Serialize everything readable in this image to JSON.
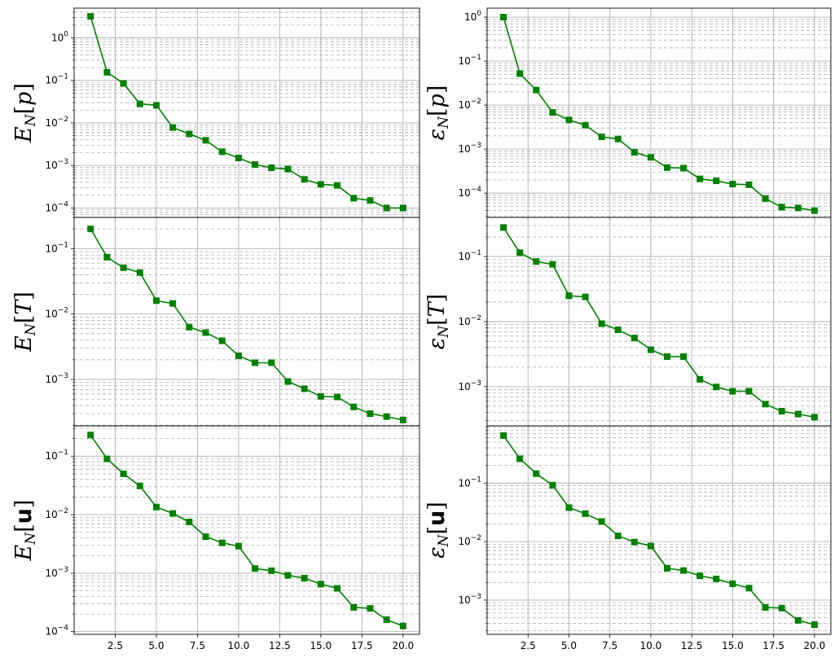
{
  "chart_data": [
    {
      "type": "line",
      "scale_y": "log",
      "grid": true,
      "marker": "square",
      "color": "#008000",
      "ylabel": {
        "main": "E",
        "sub": "N",
        "arg": "p",
        "bold_arg": false
      },
      "ylim": [
        6e-05,
        5.0
      ],
      "x": [
        1,
        2,
        3,
        4,
        5,
        6,
        7,
        8,
        9,
        10,
        11,
        12,
        13,
        14,
        15,
        16,
        17,
        18,
        19,
        20
      ],
      "values": [
        3.2,
        0.155,
        0.085,
        0.028,
        0.026,
        0.0078,
        0.0055,
        0.0039,
        0.0021,
        0.0015,
        0.00105,
        0.00088,
        0.00082,
        0.00047,
        0.00036,
        0.00034,
        0.00017,
        0.00015,
        0.0001,
        0.0001
      ],
      "yticks": [
        {
          "v": 1,
          "label": "10^0"
        },
        {
          "v": 0.1,
          "label": "10^-1"
        },
        {
          "v": 0.01,
          "label": "10^-2"
        },
        {
          "v": 0.001,
          "label": "10^-3"
        },
        {
          "v": 0.0001,
          "label": "10^-4"
        }
      ]
    },
    {
      "type": "line",
      "scale_y": "log",
      "grid": true,
      "marker": "square",
      "color": "#008000",
      "ylabel": {
        "main": "ε",
        "sub": "N",
        "arg": "p",
        "bold_arg": false
      },
      "ylim": [
        2.8e-05,
        1.6
      ],
      "x": [
        1,
        2,
        3,
        4,
        5,
        6,
        7,
        8,
        9,
        10,
        11,
        12,
        13,
        14,
        15,
        16,
        17,
        18,
        19,
        20
      ],
      "values": [
        1.0,
        0.052,
        0.022,
        0.0068,
        0.0046,
        0.0035,
        0.0019,
        0.0017,
        0.00085,
        0.00065,
        0.00038,
        0.00037,
        0.00021,
        0.00019,
        0.00016,
        0.000155,
        7.5e-05,
        4.8e-05,
        4.6e-05,
        4e-05
      ],
      "yticks": [
        {
          "v": 1,
          "label": "10^0"
        },
        {
          "v": 0.1,
          "label": "10^-1"
        },
        {
          "v": 0.01,
          "label": "10^-2"
        },
        {
          "v": 0.001,
          "label": "10^-3"
        },
        {
          "v": 0.0001,
          "label": "10^-4"
        }
      ]
    },
    {
      "type": "line",
      "scale_y": "log",
      "grid": true,
      "marker": "square",
      "color": "#008000",
      "ylabel": {
        "main": "E",
        "sub": "N",
        "arg": "T",
        "bold_arg": false
      },
      "ylim": [
        0.000195,
        0.3
      ],
      "x": [
        1,
        2,
        3,
        4,
        5,
        6,
        7,
        8,
        9,
        10,
        11,
        12,
        13,
        14,
        15,
        16,
        17,
        18,
        19,
        20
      ],
      "values": [
        0.2,
        0.074,
        0.051,
        0.043,
        0.016,
        0.0145,
        0.0063,
        0.0052,
        0.0039,
        0.0023,
        0.0018,
        0.0018,
        0.00093,
        0.00072,
        0.00055,
        0.00054,
        0.00038,
        0.0003,
        0.00027,
        0.00024
      ],
      "yticks": [
        {
          "v": 0.1,
          "label": "10^-1"
        },
        {
          "v": 0.01,
          "label": "10^-2"
        },
        {
          "v": 0.001,
          "label": "10^-3"
        }
      ]
    },
    {
      "type": "line",
      "scale_y": "log",
      "grid": true,
      "marker": "square",
      "color": "#008000",
      "ylabel": {
        "main": "ε",
        "sub": "N",
        "arg": "T",
        "bold_arg": false
      },
      "ylim": [
        0.00025,
        0.4
      ],
      "x": [
        1,
        2,
        3,
        4,
        5,
        6,
        7,
        8,
        9,
        10,
        11,
        12,
        13,
        14,
        15,
        16,
        17,
        18,
        19,
        20
      ],
      "values": [
        0.28,
        0.115,
        0.084,
        0.076,
        0.025,
        0.024,
        0.0093,
        0.0075,
        0.0056,
        0.0037,
        0.0029,
        0.0029,
        0.0013,
        0.00099,
        0.00085,
        0.00085,
        0.00054,
        0.00042,
        0.00038,
        0.00034
      ],
      "yticks": [
        {
          "v": 0.1,
          "label": "10^-1"
        },
        {
          "v": 0.01,
          "label": "10^-2"
        },
        {
          "v": 0.001,
          "label": "10^-3"
        }
      ]
    },
    {
      "type": "line",
      "scale_y": "log",
      "grid": true,
      "marker": "square",
      "color": "#008000",
      "ylabel": {
        "main": "E",
        "sub": "N",
        "arg": "u",
        "bold_arg": true
      },
      "xlabel": "",
      "ylim": [
        9e-05,
        0.33
      ],
      "x": [
        1,
        2,
        3,
        4,
        5,
        6,
        7,
        8,
        9,
        10,
        11,
        12,
        13,
        14,
        15,
        16,
        17,
        18,
        19,
        20
      ],
      "values": [
        0.23,
        0.09,
        0.05,
        0.031,
        0.0135,
        0.0105,
        0.0075,
        0.0042,
        0.0033,
        0.0029,
        0.0012,
        0.0011,
        0.00092,
        0.00082,
        0.00065,
        0.00055,
        0.00026,
        0.00025,
        0.00016,
        0.000125
      ],
      "yticks": [
        {
          "v": 0.1,
          "label": "10^-1"
        },
        {
          "v": 0.01,
          "label": "10^-2"
        },
        {
          "v": 0.001,
          "label": "10^-3"
        },
        {
          "v": 0.0001,
          "label": "10^-4"
        }
      ]
    },
    {
      "type": "line",
      "scale_y": "log",
      "grid": true,
      "marker": "square",
      "color": "#008000",
      "ylabel": {
        "main": "ε",
        "sub": "N",
        "arg": "u",
        "bold_arg": true
      },
      "xlabel": "",
      "ylim": [
        0.00026,
        0.95
      ],
      "x": [
        1,
        2,
        3,
        4,
        5,
        6,
        7,
        8,
        9,
        10,
        11,
        12,
        13,
        14,
        15,
        16,
        17,
        18,
        19,
        20
      ],
      "values": [
        0.65,
        0.26,
        0.145,
        0.092,
        0.038,
        0.03,
        0.022,
        0.0125,
        0.0098,
        0.0084,
        0.0035,
        0.0032,
        0.0026,
        0.0023,
        0.0019,
        0.0016,
        0.00075,
        0.00073,
        0.00045,
        0.00038
      ],
      "yticks": [
        {
          "v": 0.1,
          "label": "10^-1"
        },
        {
          "v": 0.01,
          "label": "10^-2"
        },
        {
          "v": 0.001,
          "label": "10^-3"
        }
      ]
    }
  ],
  "shared_x": {
    "xlim": [
      0.0,
      21.0
    ],
    "xtick_labels": [
      "2.5",
      "5.0",
      "7.5",
      "10.0",
      "12.5",
      "15.0",
      "17.5",
      "20.0"
    ],
    "xtick_values": [
      2.5,
      5.0,
      7.5,
      10.0,
      12.5,
      15.0,
      17.5,
      20.0
    ]
  }
}
